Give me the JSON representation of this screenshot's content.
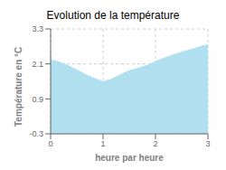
{
  "chart_data": {
    "type": "area",
    "title": "Evolution de la température",
    "xlabel": "heure par heure",
    "ylabel": "Température en °C",
    "x": [
      0,
      0.15,
      0.3,
      0.5,
      0.7,
      0.85,
      1.0,
      1.15,
      1.3,
      1.5,
      1.7,
      1.9,
      2.0,
      2.15,
      2.3,
      2.5,
      2.7,
      2.85,
      3.0
    ],
    "values": [
      2.26,
      2.18,
      2.08,
      1.9,
      1.72,
      1.6,
      1.5,
      1.58,
      1.72,
      1.88,
      1.98,
      2.1,
      2.2,
      2.3,
      2.4,
      2.52,
      2.62,
      2.7,
      2.77
    ],
    "color": "#b0dff0",
    "line_style": "dotted",
    "xlim": [
      0,
      3
    ],
    "ylim": [
      -0.3,
      3.3
    ],
    "xticks": [
      0,
      1,
      2,
      3
    ],
    "yticks": [
      -0.3,
      0.9,
      2.1,
      3.3
    ],
    "grid": true
  }
}
